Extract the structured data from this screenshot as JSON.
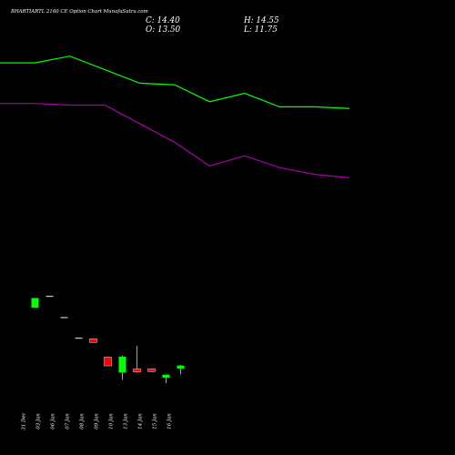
{
  "header": {
    "title": "BHARTIARTL 2160 CE Option  Chart MunafaSutra.com",
    "close": "C: 14.40",
    "open": "O: 13.50",
    "high": "H: 14.55",
    "low": "L: 11.75"
  },
  "colors": {
    "background": "#000000",
    "up": "#00ff00",
    "down": "#ff0000",
    "line_upper": "#00ff00",
    "line_lower": "#aa00aa",
    "text": "#ffffff"
  },
  "chart_data": {
    "type": "candlestick",
    "categories": [
      "31 Dec",
      "03 Jan",
      "06 Jan",
      "07 Jan",
      "08 Jan",
      "09 Jan",
      "10 Jan",
      "13 Jan",
      "14 Jan",
      "15 Jan",
      "16 Jan"
    ],
    "candles": [
      {
        "open": 31.5,
        "high": 34.4,
        "low": 31.5,
        "close": 34.4
      },
      {
        "open": 34.9,
        "high": 34.9,
        "low": 34.9,
        "close": 34.9
      },
      {
        "open": 28.6,
        "high": 28.6,
        "low": 28.6,
        "close": 28.6
      },
      {
        "open": 22.5,
        "high": 22.5,
        "low": 22.5,
        "close": 22.5
      },
      {
        "open": 22.3,
        "high": 22.3,
        "low": 21.2,
        "close": 21.2
      },
      {
        "open": 16.9,
        "high": 16.9,
        "low": 14.3,
        "close": 14.3
      },
      {
        "open": 12.3,
        "high": 17.3,
        "low": 10.2,
        "close": 17.0
      },
      {
        "open": 13.4,
        "high": 20.2,
        "low": 12.3,
        "close": 12.5
      },
      {
        "open": 13.4,
        "high": 13.4,
        "low": 12.5,
        "close": 12.6
      },
      {
        "open": 10.8,
        "high": 11.7,
        "low": 9.2,
        "close": 11.7
      },
      {
        "open": 13.5,
        "high": 14.55,
        "low": 11.75,
        "close": 14.4
      }
    ],
    "lines": [
      {
        "color": "#00ff00",
        "values": [
          104,
          104,
          106,
          102,
          98,
          97.5,
          92.5,
          95,
          91,
          91,
          90.5
        ]
      },
      {
        "color": "#aa00aa",
        "values": [
          92,
          92,
          91.5,
          91.5,
          86,
          80.5,
          73.5,
          76.5,
          73,
          71,
          70
        ]
      }
    ],
    "ylim": [
      10,
      107
    ]
  }
}
